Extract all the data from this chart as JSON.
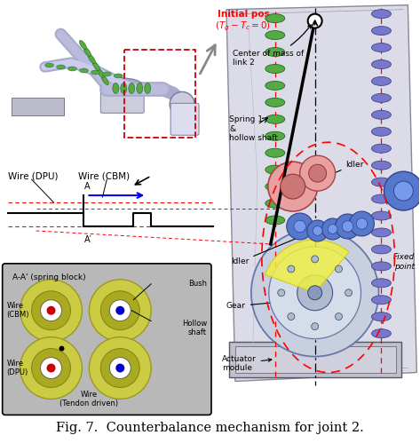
{
  "fig_caption": "Fig. 7.  Counterbalance mechanism for joint 2.",
  "caption_fontsize": 10.5,
  "bg_color": "#ffffff",
  "fig_width": 4.73,
  "fig_height": 4.99,
  "initial_pos_text": "Initial pos.",
  "initial_pos_eq": "$(T_g - T_c = 0)$",
  "initial_pos_color": "#ff0000",
  "labels": {
    "center_of_mass": "Center of mass of\nlink 2",
    "spring1": "Spring 1\n&\nhollow shaft",
    "idler_top": "Idler",
    "idler_bottom": "Idler",
    "wire_dpu": "Wire (DPU)",
    "wire_cbm": "Wire (CBM)",
    "section_label": "A-A' (spring block)",
    "bush": "Bush",
    "hollow_shaft": "Hollow\nshaft",
    "wire_cbm2": "Wire\n(CBM)",
    "wire_dpu2": "Wire\n(DPU)",
    "wire_tendon": "Wire\n(Tendon driven)",
    "gear": "Gear",
    "actuator": "Actuator\nmodule",
    "fixed_point": "Fixed\npoint",
    "A_label": "A",
    "A_prime": "A′"
  }
}
